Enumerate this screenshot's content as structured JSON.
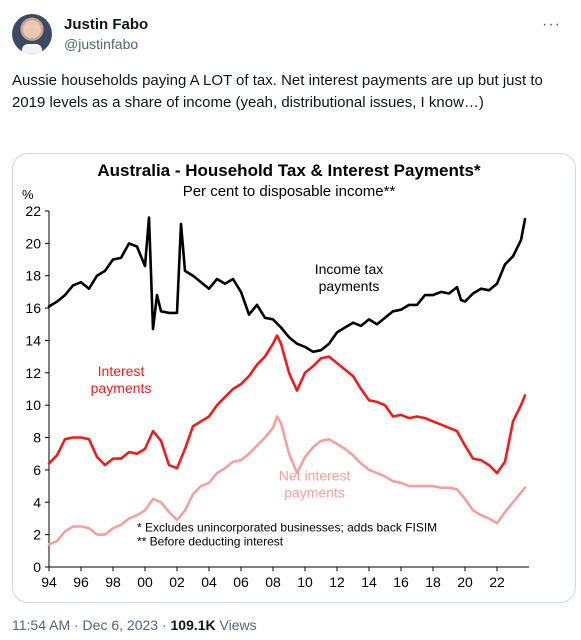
{
  "tweet": {
    "author_name": "Justin Fabo",
    "author_handle": "@justinfabo",
    "more_icon": "more-horizontal-icon",
    "text": "Aussie households paying A LOT of tax. Net interest payments are up but just to 2019 levels as a share of income (yeah, distributional issues, I know…)",
    "timestamp": "11:54 AM · Dec 6, 2023 · ",
    "views_count": "109.1K",
    "views_label": " Views"
  },
  "chart_data": {
    "type": "line",
    "title": "Australia - Household Tax & Interest Payments*",
    "subtitle": "Per cent to disposable income**",
    "ylabel": "%",
    "ylim": [
      0,
      22
    ],
    "yticks": [
      0,
      2,
      4,
      6,
      8,
      10,
      12,
      14,
      16,
      18,
      20,
      22
    ],
    "xlim": [
      1994,
      2024
    ],
    "xtick_labels": [
      "94",
      "96",
      "98",
      "00",
      "02",
      "04",
      "06",
      "08",
      "10",
      "12",
      "14",
      "16",
      "18",
      "20",
      "22"
    ],
    "grid": false,
    "footnotes": [
      "* Excludes unincorporated businesses; adds back FISIM",
      "** Before deducting interest"
    ],
    "series": [
      {
        "name": "Income tax payments",
        "label_lines": [
          "Income tax",
          "payments"
        ],
        "color": "#000000",
        "x": [
          1994.0,
          1994.5,
          1995.0,
          1995.5,
          1996.0,
          1996.5,
          1997.0,
          1997.5,
          1998.0,
          1998.5,
          1999.0,
          1999.5,
          1999.75,
          2000.0,
          2000.25,
          2000.5,
          2000.75,
          2001.0,
          2001.5,
          2002.0,
          2002.25,
          2002.5,
          2003.0,
          2003.5,
          2004.0,
          2004.5,
          2005.0,
          2005.5,
          2006.0,
          2006.5,
          2007.0,
          2007.5,
          2008.0,
          2008.5,
          2009.0,
          2009.5,
          2010.0,
          2010.5,
          2011.0,
          2011.5,
          2012.0,
          2012.5,
          2013.0,
          2013.5,
          2014.0,
          2014.5,
          2015.0,
          2015.5,
          2016.0,
          2016.5,
          2017.0,
          2017.5,
          2018.0,
          2018.5,
          2019.0,
          2019.5,
          2019.75,
          2020.0,
          2020.5,
          2021.0,
          2021.5,
          2022.0,
          2022.5,
          2023.0,
          2023.5,
          2023.75
        ],
        "values": [
          16.1,
          16.4,
          16.8,
          17.4,
          17.6,
          17.2,
          18.0,
          18.3,
          19.0,
          19.1,
          20.0,
          19.8,
          19.2,
          18.6,
          21.6,
          14.7,
          16.8,
          15.8,
          15.7,
          15.7,
          21.2,
          18.3,
          18.0,
          17.6,
          17.2,
          17.8,
          17.5,
          17.8,
          17.0,
          15.6,
          16.2,
          15.4,
          15.3,
          14.8,
          14.2,
          13.8,
          13.6,
          13.3,
          13.4,
          13.8,
          14.5,
          14.8,
          15.1,
          14.9,
          15.3,
          15.0,
          15.4,
          15.8,
          15.9,
          16.2,
          16.2,
          16.8,
          16.8,
          17.0,
          16.9,
          17.3,
          16.5,
          16.4,
          16.9,
          17.2,
          17.1,
          17.5,
          18.7,
          19.2,
          20.2,
          21.5
        ]
      },
      {
        "name": "Interest payments",
        "label_lines": [
          "Interest",
          "payments"
        ],
        "color": "#ee1c1c",
        "x": [
          1994.0,
          1994.5,
          1995.0,
          1995.5,
          1996.0,
          1996.5,
          1997.0,
          1997.5,
          1998.0,
          1998.5,
          1999.0,
          1999.5,
          2000.0,
          2000.5,
          2001.0,
          2001.5,
          2002.0,
          2002.5,
          2003.0,
          2003.5,
          2004.0,
          2004.5,
          2005.0,
          2005.5,
          2006.0,
          2006.5,
          2007.0,
          2007.5,
          2008.0,
          2008.25,
          2008.5,
          2009.0,
          2009.5,
          2010.0,
          2010.5,
          2011.0,
          2011.5,
          2012.0,
          2012.5,
          2013.0,
          2013.5,
          2014.0,
          2014.5,
          2015.0,
          2015.5,
          2016.0,
          2016.5,
          2017.0,
          2017.5,
          2018.0,
          2018.5,
          2019.0,
          2019.5,
          2020.0,
          2020.5,
          2021.0,
          2021.5,
          2022.0,
          2022.5,
          2023.0,
          2023.5,
          2023.75
        ],
        "values": [
          6.4,
          6.9,
          7.9,
          8.0,
          8.0,
          7.9,
          6.8,
          6.3,
          6.7,
          6.7,
          7.1,
          7.0,
          7.3,
          8.4,
          7.8,
          6.3,
          6.1,
          7.3,
          8.7,
          9.0,
          9.3,
          10.0,
          10.5,
          11.0,
          11.3,
          11.8,
          12.5,
          13.0,
          13.8,
          14.3,
          13.8,
          12.0,
          10.9,
          12.0,
          12.4,
          12.9,
          13.0,
          12.6,
          12.2,
          11.8,
          11.0,
          10.3,
          10.2,
          10.0,
          9.3,
          9.4,
          9.2,
          9.3,
          9.2,
          9.0,
          8.8,
          8.6,
          8.4,
          7.5,
          6.7,
          6.6,
          6.3,
          5.8,
          6.5,
          9.0,
          10.0,
          10.6
        ]
      },
      {
        "name": "Net interest payments",
        "label_lines": [
          "Net interest",
          "payments"
        ],
        "color": "#f4a0a0",
        "x": [
          1994.0,
          1994.5,
          1995.0,
          1995.5,
          1996.0,
          1996.5,
          1997.0,
          1997.5,
          1998.0,
          1998.5,
          1999.0,
          1999.5,
          2000.0,
          2000.5,
          2001.0,
          2001.5,
          2002.0,
          2002.5,
          2003.0,
          2003.5,
          2004.0,
          2004.5,
          2005.0,
          2005.5,
          2006.0,
          2006.5,
          2007.0,
          2007.5,
          2008.0,
          2008.25,
          2008.5,
          2009.0,
          2009.5,
          2010.0,
          2010.5,
          2011.0,
          2011.5,
          2012.0,
          2012.5,
          2013.0,
          2013.5,
          2014.0,
          2014.5,
          2015.0,
          2015.5,
          2016.0,
          2016.5,
          2017.0,
          2017.5,
          2018.0,
          2018.5,
          2019.0,
          2019.5,
          2020.0,
          2020.5,
          2021.0,
          2021.5,
          2022.0,
          2022.5,
          2023.0,
          2023.5,
          2023.75
        ],
        "values": [
          1.4,
          1.6,
          2.2,
          2.5,
          2.5,
          2.4,
          2.0,
          2.0,
          2.4,
          2.6,
          3.0,
          3.2,
          3.5,
          4.2,
          4.0,
          3.4,
          2.9,
          3.5,
          4.5,
          5.0,
          5.2,
          5.8,
          6.1,
          6.5,
          6.6,
          7.0,
          7.5,
          8.0,
          8.6,
          9.3,
          8.9,
          7.0,
          5.8,
          6.8,
          7.4,
          7.8,
          7.9,
          7.6,
          7.3,
          6.9,
          6.4,
          6.0,
          5.8,
          5.6,
          5.3,
          5.2,
          5.0,
          5.0,
          5.0,
          5.0,
          4.9,
          4.9,
          4.8,
          4.2,
          3.5,
          3.2,
          3.0,
          2.7,
          3.4,
          4.0,
          4.6,
          4.9
        ]
      }
    ]
  }
}
